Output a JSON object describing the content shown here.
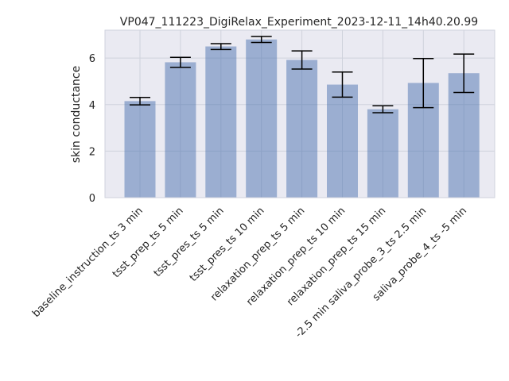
{
  "chart_data": {
    "type": "bar",
    "title": "VP047_111223_DigiRelax_Experiment_2023-12-11_14h40.20.99",
    "xlabel": "",
    "ylabel": "skin conductance",
    "ylim": [
      0,
      7.2
    ],
    "yticks": [
      0,
      2,
      4,
      6
    ],
    "grid": true,
    "categories": [
      "baseline_instruction_ts 3 min",
      "tsst_prep_ts 5 min",
      "tsst_pres_ts 5 min",
      "tsst_pres_ts 10 min",
      "relaxation_prep_ts 5 min",
      "relaxation_prep_ts 10 min",
      "relaxation_prep_ts 15 min",
      "-2.5 min saliva_probe_3_ts 2.5 min",
      "saliva_probe_4_ts -5 min"
    ],
    "series": [
      {
        "values": [
          4.15,
          5.82,
          6.5,
          6.8,
          5.92,
          4.86,
          3.8,
          4.93,
          5.35
        ],
        "error_low": [
          3.99,
          5.6,
          6.37,
          6.67,
          5.53,
          4.32,
          3.65,
          3.87,
          4.52
        ],
        "error_high": [
          4.31,
          6.03,
          6.62,
          6.93,
          6.31,
          5.4,
          3.95,
          5.98,
          6.17
        ]
      }
    ],
    "colors": {
      "bar": "#4c72b0",
      "plot_background": "#eaeaf2",
      "grid": "#cfd2dc",
      "error_bar": "#000000"
    }
  }
}
